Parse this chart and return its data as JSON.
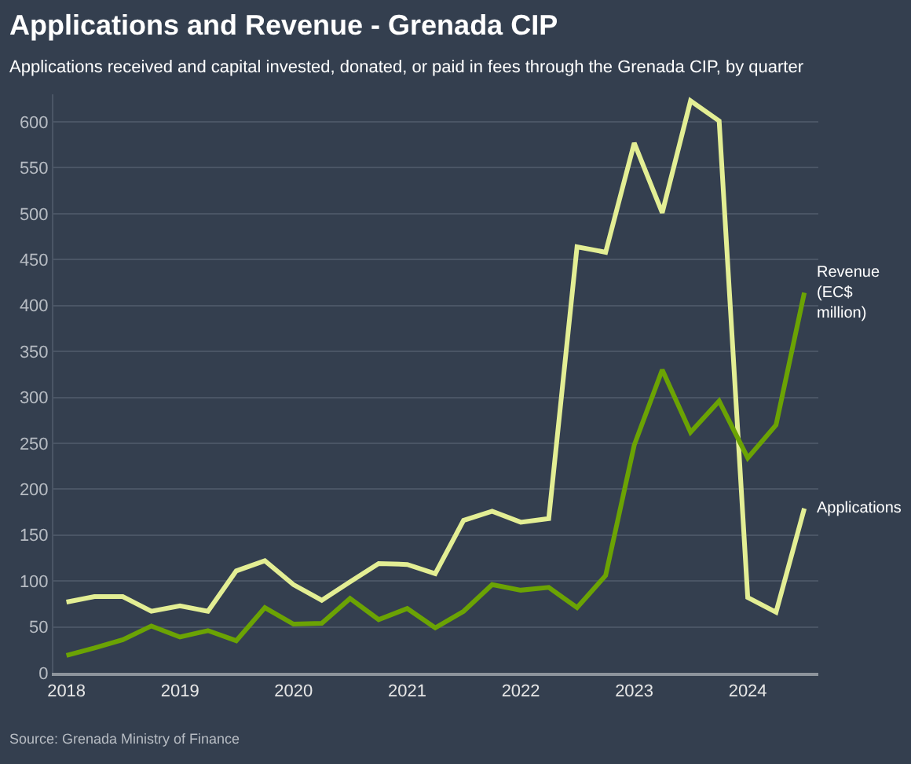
{
  "chart_data": {
    "type": "line",
    "title": "Applications and Revenue - Grenada CIP",
    "subtitle": "Applications received and capital invested, donated, or paid in fees through the Grenada CIP, by quarter",
    "x": [
      "2018-01",
      "2018-04",
      "2018-07",
      "2018-10",
      "2019-01",
      "2019-04",
      "2019-07",
      "2019-10",
      "2020-01",
      "2020-04",
      "2020-07",
      "2020-10",
      "2021-01",
      "2021-04",
      "2021-07",
      "2021-10",
      "2022-01",
      "2022-04",
      "2022-07",
      "2022-10",
      "2023-01",
      "2023-04",
      "2023-07",
      "2023-10",
      "2024-01",
      "2024-04",
      "2024-07"
    ],
    "series": [
      {
        "name": "Applications",
        "color": "#e3ee94",
        "values": [
          77,
          83,
          83,
          67,
          73,
          67,
          111,
          122,
          96,
          79,
          99,
          119,
          118,
          108,
          166,
          176,
          164,
          168,
          464,
          458,
          577,
          501,
          623,
          601,
          82,
          66,
          179
        ]
      },
      {
        "name": "Revenue (EC$ million)",
        "color": "#6ba304",
        "values": [
          19,
          27,
          36,
          51,
          39,
          46,
          35,
          71,
          53,
          54,
          81,
          58,
          70,
          49,
          67,
          96,
          90,
          93,
          71,
          106,
          248,
          330,
          262,
          296,
          234,
          270,
          414
        ]
      }
    ],
    "xlim": [
      "2017-11-20",
      "2024-08-15"
    ],
    "xticks": [
      "2018",
      "2019",
      "2020",
      "2021",
      "2022",
      "2023",
      "2024"
    ],
    "ylim": [
      0,
      630
    ],
    "yticks": [
      0,
      50,
      100,
      150,
      200,
      250,
      300,
      350,
      400,
      450,
      500,
      550,
      600
    ],
    "grid": "y",
    "legend": false,
    "marker": "none",
    "line_style": "solid",
    "annotations": [
      "Source: Grenada Ministry of Finance"
    ]
  }
}
